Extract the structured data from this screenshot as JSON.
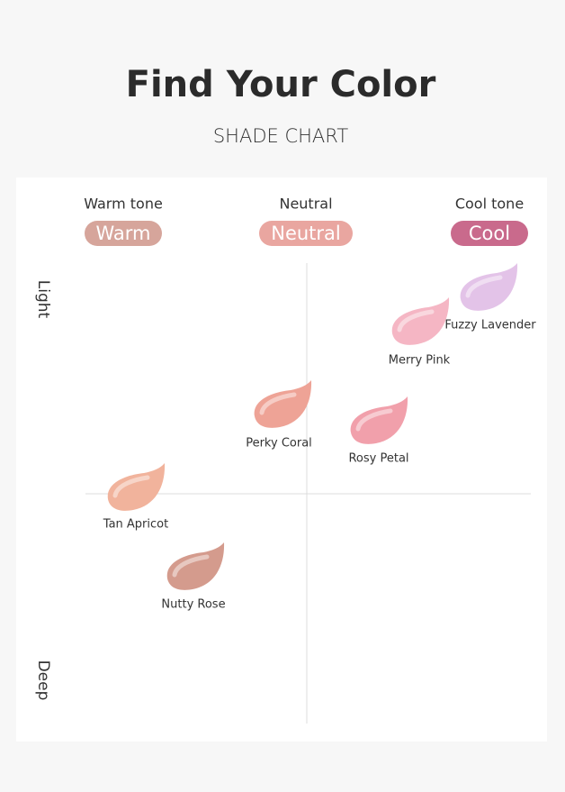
{
  "header": {
    "title": "Find Your Color",
    "subtitle": "SHADE CHART"
  },
  "columns": [
    {
      "heading": "Warm tone",
      "pill": "Warm",
      "color": "#d6a59b"
    },
    {
      "heading": "Neutral",
      "pill": "Neutral",
      "color": "#e9a6a0"
    },
    {
      "heading": "Cool tone",
      "pill": "Cool",
      "color": "#c96a8c"
    }
  ],
  "axis": {
    "top": "Light",
    "bottom": "Deep"
  },
  "swatches": [
    {
      "label": "Fuzzy Lavender",
      "color": "#e3c3e8"
    },
    {
      "label": "Merry Pink",
      "color": "#f5b6c4"
    },
    {
      "label": "Perky Coral",
      "color": "#eea396"
    },
    {
      "label": "Rosy Petal",
      "color": "#f1a0ab"
    },
    {
      "label": "Tan Apricot",
      "color": "#f1b39c"
    },
    {
      "label": "Nutty Rose",
      "color": "#d49b8d"
    }
  ]
}
